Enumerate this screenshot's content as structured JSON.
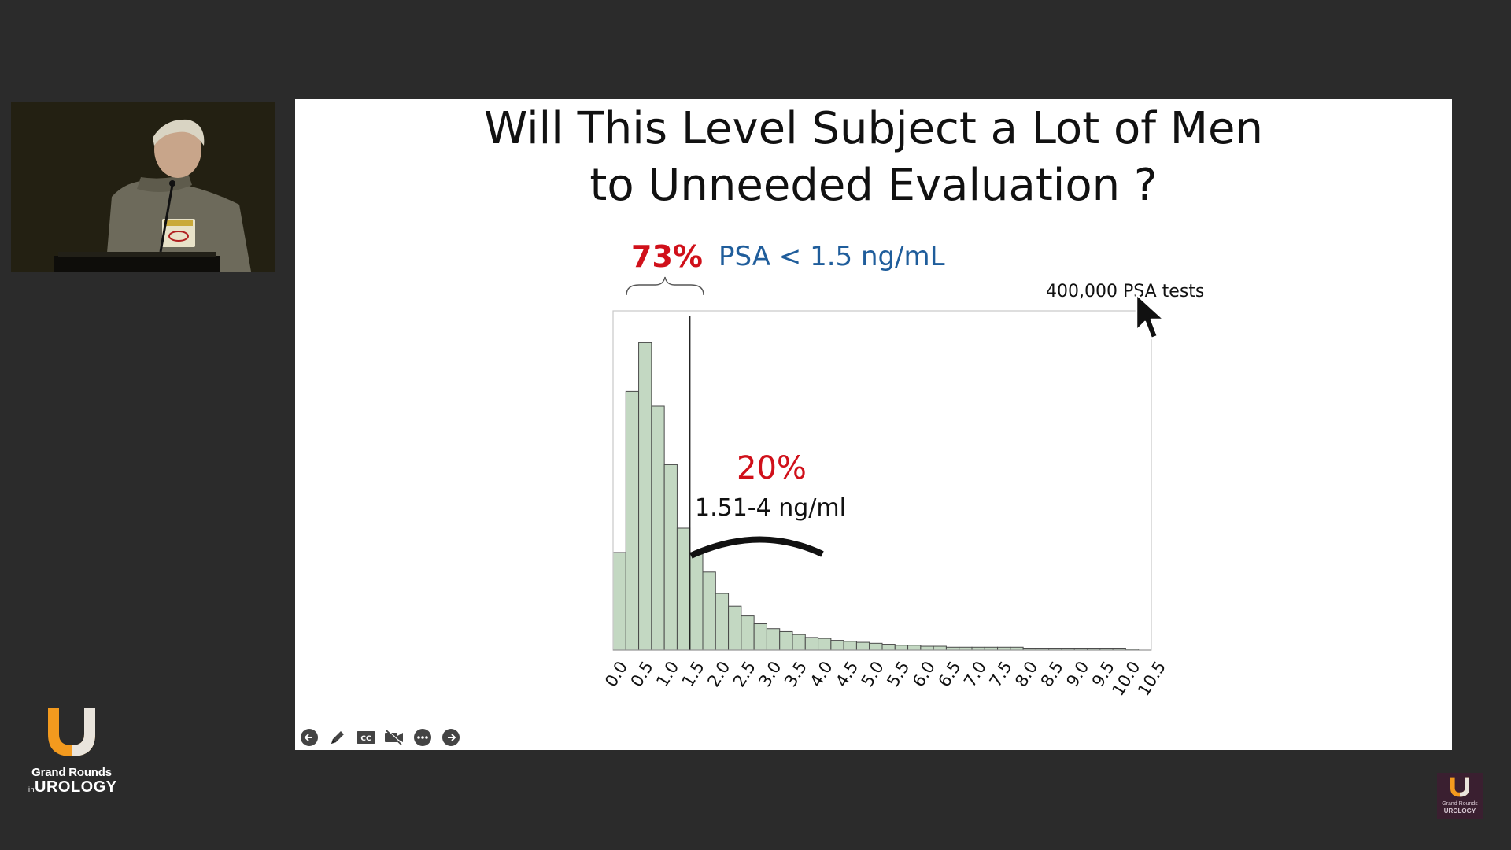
{
  "slide": {
    "title_line1": "Will This Level Subject a Lot of Men",
    "title_line2": "to Unneeded Evaluation ?",
    "annotations": {
      "pct_low": "73%",
      "psa_threshold": "PSA < 1.5 ng/mL",
      "sample_size": "400,000 PSA tests",
      "pct_mid": "20%",
      "mid_range": "1.51-4 ng/ml"
    },
    "controls": [
      {
        "name": "previous-slide",
        "icon": "arrow-left-icon"
      },
      {
        "name": "pen-tool",
        "icon": "pencil-icon"
      },
      {
        "name": "closed-captions",
        "icon": "cc-icon"
      },
      {
        "name": "video-toggle",
        "icon": "video-off-icon"
      },
      {
        "name": "more-options",
        "icon": "ellipsis-icon"
      },
      {
        "name": "next-slide",
        "icon": "arrow-right-icon"
      }
    ]
  },
  "brand": {
    "line1": "Grand Rounds",
    "line2_prefix": "in",
    "line2": "UROLOGY",
    "corner_line1": "Grand Rounds",
    "corner_line2": "UROLOGY"
  },
  "colors": {
    "bar_fill": "#c3d8c2",
    "bar_stroke": "#4a4a4a",
    "accent_red": "#d0101a",
    "accent_blue": "#1f5d9b",
    "brand_orange": "#f39a1e"
  },
  "chart_data": {
    "type": "bar",
    "bin_width": 0.25,
    "x_tick_labels": [
      "0.0",
      "0.5",
      "1.0",
      "1.5",
      "2.0",
      "2.5",
      "3.0",
      "3.5",
      "4.0",
      "4.5",
      "5.0",
      "5.5",
      "6.0",
      "6.5",
      "7.0",
      "7.5",
      "8.0",
      "8.5",
      "9.0",
      "9.5",
      "10.0",
      "10.5"
    ],
    "xlim": [
      0,
      10.5
    ],
    "values": [
      100,
      265,
      315,
      250,
      190,
      125,
      100,
      80,
      58,
      45,
      35,
      27,
      22,
      19,
      16,
      13,
      12,
      10,
      9,
      8,
      7,
      6,
      5,
      5,
      4,
      4,
      3,
      3,
      3,
      3,
      3,
      3,
      2,
      2,
      2,
      2,
      2,
      2,
      2,
      2,
      1
    ],
    "ylim": [
      0,
      350
    ],
    "threshold_line_x": 1.5,
    "title": "",
    "xlabel": "",
    "ylabel": ""
  }
}
